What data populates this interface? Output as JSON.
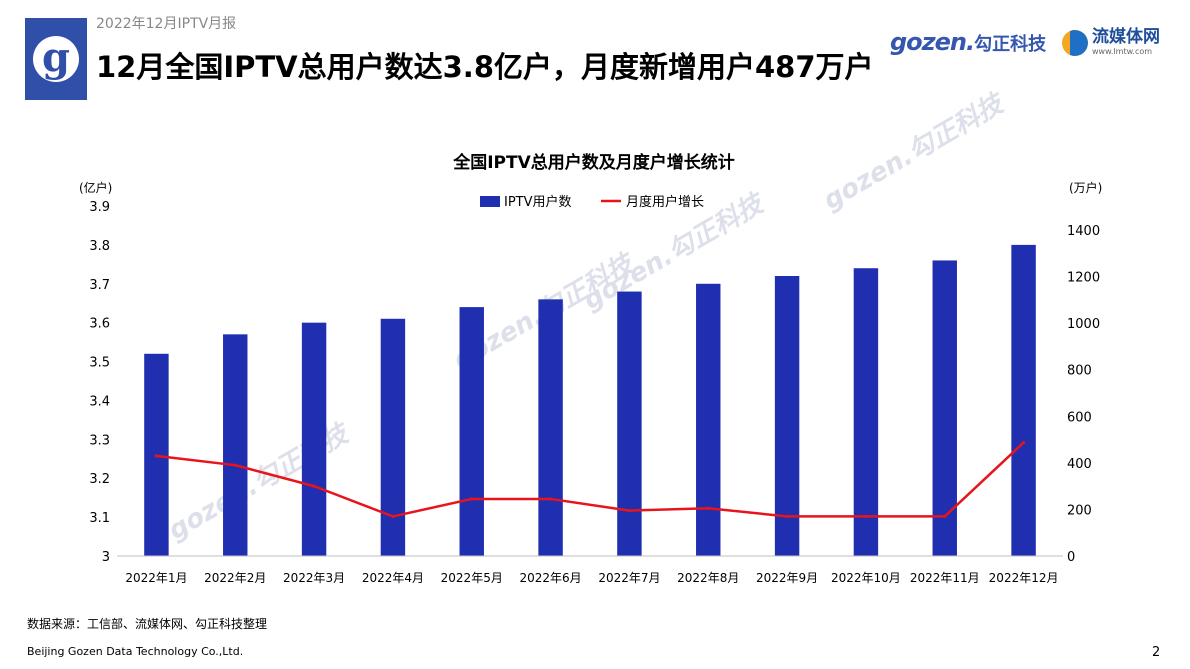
{
  "header": {
    "report_tag": "2022年12月IPTV月报",
    "headline": "12月全国IPTV总用户数达3.8亿户，月度新增用户487万户",
    "logo_letter": "g",
    "brand_gozen_latin": "gozen.",
    "brand_gozen_cn": "勾正科技",
    "brand_lmtw_name": "流媒体网",
    "brand_lmtw_url": "www.lmtw.com"
  },
  "chart_data": {
    "type": "bar",
    "title": "全国IPTV总用户数及月度户增长统计",
    "categories": [
      "2022年1月",
      "2022年2月",
      "2022年3月",
      "2022年4月",
      "2022年5月",
      "2022年6月",
      "2022年7月",
      "2022年8月",
      "2022年9月",
      "2022年10月",
      "2022年11月",
      "2022年12月"
    ],
    "series": [
      {
        "name": "IPTV用户数",
        "type": "bar",
        "axis": "left",
        "color": "#1f2fb0",
        "values": [
          3.52,
          3.57,
          3.6,
          3.61,
          3.64,
          3.66,
          3.68,
          3.7,
          3.72,
          3.74,
          3.76,
          3.8
        ]
      },
      {
        "name": "月度用户增长",
        "type": "line",
        "axis": "right",
        "color": "#e8141c",
        "values": [
          430,
          390,
          300,
          170,
          245,
          245,
          195,
          205,
          170,
          170,
          170,
          487
        ]
      }
    ],
    "y_left": {
      "unit_label": "(亿户)",
      "ylim": [
        3,
        3.9
      ],
      "ticks": [
        "3",
        "3.1",
        "3.2",
        "3.3",
        "3.4",
        "3.5",
        "3.6",
        "3.7",
        "3.8",
        "3.9"
      ]
    },
    "y_right": {
      "unit_label": "(万户)",
      "ylim": [
        0,
        1400
      ],
      "ticks": [
        "0",
        "200",
        "400",
        "600",
        "800",
        "1000",
        "1200",
        "1400"
      ]
    },
    "grid": false,
    "legend_position": "top-center"
  },
  "watermark_text": "gozen.勾正科技",
  "footer": {
    "source": "数据来源：工信部、流媒体网、勾正科技整理",
    "company": "Beijing Gozen Data Technology Co.,Ltd.",
    "page_number": "2"
  }
}
